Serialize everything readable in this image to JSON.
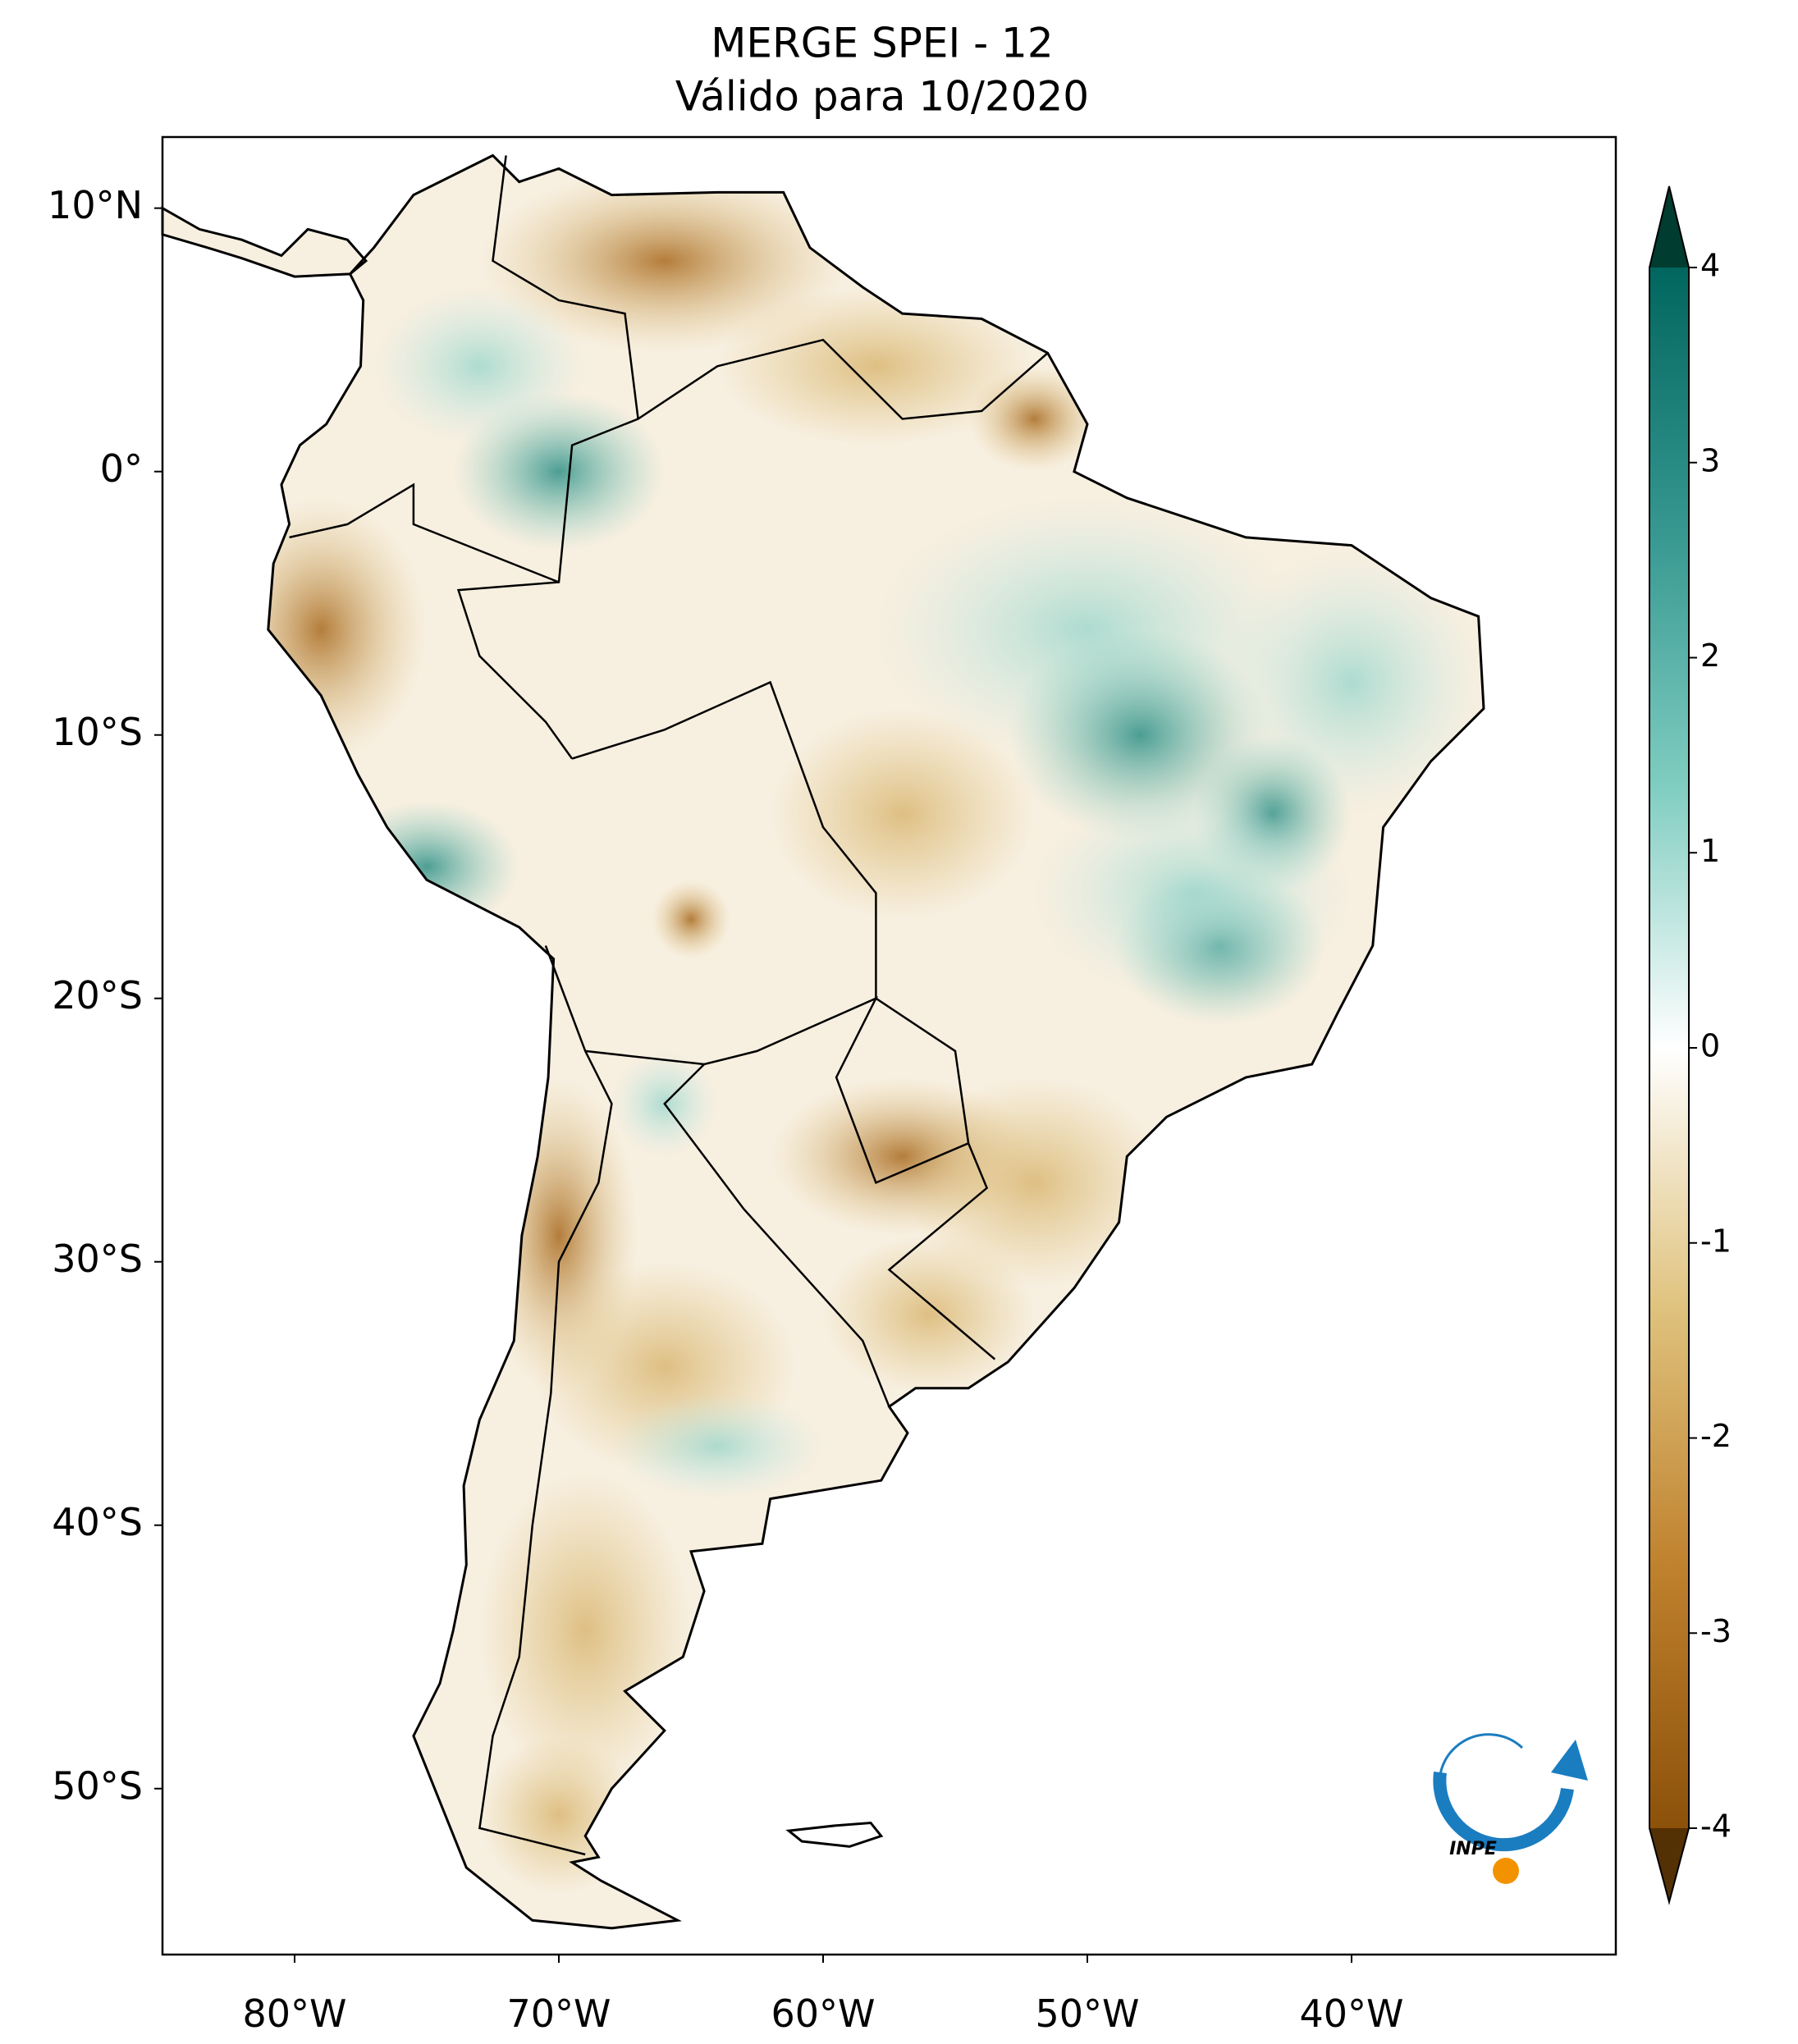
{
  "map": {
    "title": "MERGE   SPEI - 12",
    "subtitle": "Válido para 10/2020",
    "xlim": [
      -85,
      -30
    ],
    "ylim": [
      -56.3,
      12.7
    ],
    "xticks": [
      {
        "value": -80,
        "label": "80°W"
      },
      {
        "value": -70,
        "label": "70°W"
      },
      {
        "value": -60,
        "label": "60°W"
      },
      {
        "value": -50,
        "label": "50°W"
      },
      {
        "value": -40,
        "label": "40°W"
      }
    ],
    "yticks": [
      {
        "value": 10,
        "label": "10°N"
      },
      {
        "value": 0,
        "label": "0°"
      },
      {
        "value": -10,
        "label": "10°S"
      },
      {
        "value": -20,
        "label": "20°S"
      },
      {
        "value": -30,
        "label": "30°S"
      },
      {
        "value": -40,
        "label": "40°S"
      },
      {
        "value": -50,
        "label": "50°S"
      }
    ],
    "colorbar": {
      "lim": [
        -4,
        4
      ],
      "ticks": [
        -4,
        -3,
        -2,
        -1,
        0,
        1,
        2,
        3,
        4
      ],
      "colors": [
        "#543005",
        "#8c510a",
        "#bf812d",
        "#dfc27d",
        "#ffffff",
        "#80cdc1",
        "#35978f",
        "#01665e",
        "#003c30"
      ]
    },
    "logo_text": "INPE"
  }
}
